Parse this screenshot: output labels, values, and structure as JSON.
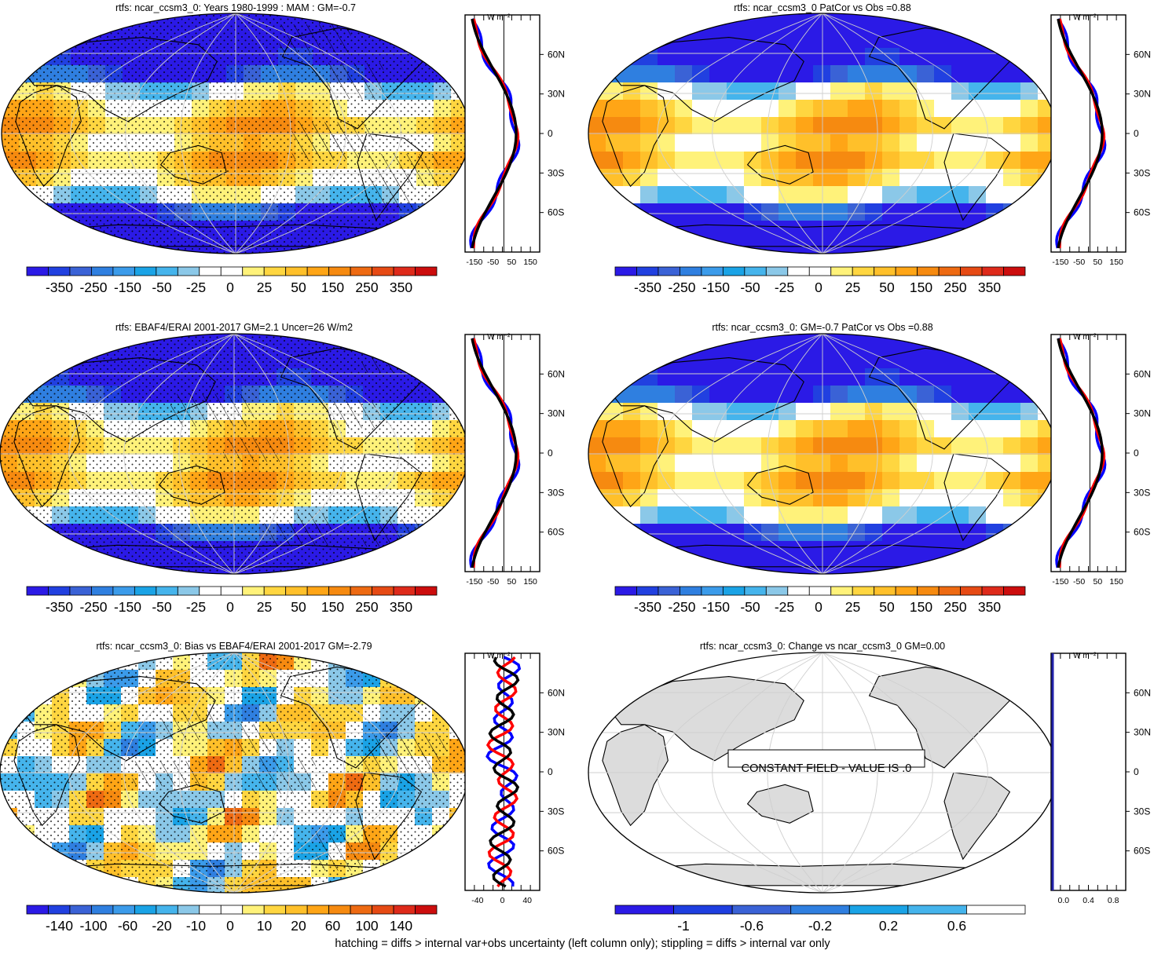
{
  "colors": {
    "scale": [
      "#2b1ae6",
      "#2140e0",
      "#3a62d6",
      "#2f7fe0",
      "#3b9bea",
      "#1aa3e6",
      "#45b4ec",
      "#8bc8e8",
      "#ffffff",
      "#ffffff",
      "#fff27a",
      "#ffd640",
      "#ffc02a",
      "#ffa516",
      "#f68a10",
      "#ee6a12",
      "#e64a14",
      "#de2a1a",
      "#cc0d0d"
    ],
    "land": "#dcdcdc",
    "obs_line": "#ff0000",
    "model_line": "#0000ff",
    "third_line": "#000000"
  },
  "panels": [
    {
      "id": "p1",
      "title": "rtfs: ncar_ccsm3_0: Years 1980-1999 : MAM : GM=-0.7",
      "colorbar_labels": [
        "-350",
        "-250",
        "-150",
        "-50",
        "-25",
        "0",
        "25",
        "50",
        "150",
        "250",
        "350"
      ],
      "profile_unit": "W m⁻²",
      "profile_x_ticks": [
        "-150",
        "-50",
        "50",
        "150"
      ],
      "profile_lat_ticks": [
        "60N",
        "30N",
        "0",
        "30S",
        "60S"
      ],
      "kind": "field",
      "hatched": true
    },
    {
      "id": "p2",
      "title": "rtfs: ncar_ccsm3_0 PatCor vs Obs =0.88",
      "colorbar_labels": [
        "-350",
        "-250",
        "-150",
        "-50",
        "-25",
        "0",
        "25",
        "50",
        "150",
        "250",
        "350"
      ],
      "profile_unit": "W m⁻²",
      "profile_x_ticks": [
        "-150",
        "-50",
        "50",
        "150"
      ],
      "profile_lat_ticks": [
        "60N",
        "30N",
        "0",
        "30S",
        "60S"
      ],
      "kind": "field",
      "hatched": false
    },
    {
      "id": "p3",
      "title": "rtfs: EBAF4/ERAI 2001-2017 GM=2.1 Uncer=26 W/m2",
      "colorbar_labels": [
        "-350",
        "-250",
        "-150",
        "-50",
        "-25",
        "0",
        "25",
        "50",
        "150",
        "250",
        "350"
      ],
      "profile_unit": "W m⁻²",
      "profile_x_ticks": [
        "-150",
        "-50",
        "50",
        "150"
      ],
      "profile_lat_ticks": [
        "60N",
        "30N",
        "0",
        "30S",
        "60S"
      ],
      "kind": "field",
      "hatched": true
    },
    {
      "id": "p4",
      "title": "rtfs: ncar_ccsm3_0: GM=-0.7 PatCor vs Obs =0.88",
      "colorbar_labels": [
        "-350",
        "-250",
        "-150",
        "-50",
        "-25",
        "0",
        "25",
        "50",
        "150",
        "250",
        "350"
      ],
      "profile_unit": "W m⁻²",
      "profile_x_ticks": [
        "-150",
        "-50",
        "50",
        "150"
      ],
      "profile_lat_ticks": [
        "60N",
        "30N",
        "0",
        "30S",
        "60S"
      ],
      "kind": "field",
      "hatched": false
    },
    {
      "id": "p5",
      "title": "rtfs: ncar_ccsm3_0: Bias vs EBAF4/ERAI 2001-2017 GM=-2.79",
      "colorbar_labels": [
        "-140",
        "-100",
        "-60",
        "-20",
        "-10",
        "0",
        "10",
        "20",
        "60",
        "100",
        "140"
      ],
      "profile_unit": "W m⁻²",
      "profile_x_ticks": [
        "-40",
        "0",
        "40"
      ],
      "profile_lat_ticks": [
        "60N",
        "30N",
        "0",
        "30S",
        "60S"
      ],
      "kind": "bias",
      "hatched": true
    },
    {
      "id": "p6",
      "title": "rtfs: ncar_ccsm3_0: Change vs ncar_ccsm3_0 GM=0.00",
      "colorbar_labels": [
        "-1",
        "-0.6",
        "-0.2",
        "0.2",
        "0.6"
      ],
      "profile_unit": "W m⁻²",
      "profile_x_ticks": [
        "0.0",
        "0.4",
        "0.8"
      ],
      "profile_lat_ticks": [
        "60N",
        "30N",
        "0",
        "30S",
        "60S"
      ],
      "kind": "constant",
      "center_label": "CONSTANT FIELD - VALUE IS .0"
    }
  ],
  "footer": "hatching = diffs > internal var+obs uncertainty (left column only); stippling = diffs > internal var only"
}
